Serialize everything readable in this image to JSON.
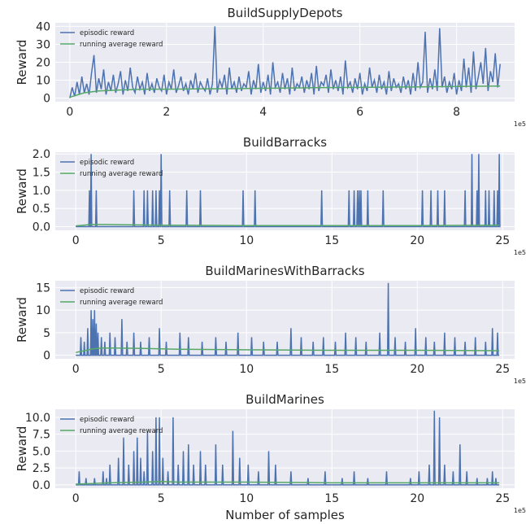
{
  "chart_data": [
    {
      "type": "line",
      "title": "BuildSupplyDepots",
      "ylabel": "Reward",
      "xlabel": "",
      "x_offset_text": "1e5",
      "xlim": [
        -0.3,
        9.2
      ],
      "ylim": [
        -2,
        42
      ],
      "xticks": [
        0,
        2,
        4,
        6,
        8
      ],
      "yticks": [
        0,
        10,
        20,
        30,
        40
      ],
      "legend": "top-left",
      "grid": true,
      "series": [
        {
          "name": "episodic reward",
          "color": "#4c72b0",
          "x": [
            0,
            0.05,
            0.1,
            0.15,
            0.2,
            0.25,
            0.3,
            0.35,
            0.4,
            0.45,
            0.5,
            0.55,
            0.6,
            0.65,
            0.7,
            0.75,
            0.8,
            0.85,
            0.9,
            0.95,
            1.0,
            1.05,
            1.1,
            1.15,
            1.2,
            1.25,
            1.3,
            1.35,
            1.4,
            1.45,
            1.5,
            1.55,
            1.6,
            1.65,
            1.7,
            1.75,
            1.8,
            1.85,
            1.9,
            1.95,
            2.0,
            2.05,
            2.1,
            2.15,
            2.2,
            2.25,
            2.3,
            2.35,
            2.4,
            2.45,
            2.5,
            2.55,
            2.6,
            2.65,
            2.7,
            2.75,
            2.8,
            2.85,
            2.9,
            2.95,
            3.0,
            3.05,
            3.1,
            3.15,
            3.2,
            3.25,
            3.3,
            3.35,
            3.4,
            3.45,
            3.5,
            3.55,
            3.6,
            3.65,
            3.7,
            3.75,
            3.8,
            3.85,
            3.9,
            3.95,
            4.0,
            4.05,
            4.1,
            4.15,
            4.2,
            4.25,
            4.3,
            4.35,
            4.4,
            4.45,
            4.5,
            4.55,
            4.6,
            4.65,
            4.7,
            4.75,
            4.8,
            4.85,
            4.9,
            4.95,
            5.0,
            5.05,
            5.1,
            5.15,
            5.2,
            5.25,
            5.3,
            5.35,
            5.4,
            5.45,
            5.5,
            5.55,
            5.6,
            5.65,
            5.7,
            5.75,
            5.8,
            5.85,
            5.9,
            5.95,
            6.0,
            6.05,
            6.1,
            6.15,
            6.2,
            6.25,
            6.3,
            6.35,
            6.4,
            6.45,
            6.5,
            6.55,
            6.6,
            6.65,
            6.7,
            6.75,
            6.8,
            6.85,
            6.9,
            6.95,
            7.0,
            7.05,
            7.1,
            7.15,
            7.2,
            7.25,
            7.3,
            7.35,
            7.4,
            7.45,
            7.5,
            7.55,
            7.6,
            7.65,
            7.7,
            7.75,
            7.8,
            7.85,
            7.9,
            7.95,
            8.0,
            8.05,
            8.1,
            8.15,
            8.2,
            8.25,
            8.3,
            8.35,
            8.4,
            8.45,
            8.5,
            8.55,
            8.6,
            8.65,
            8.7,
            8.75,
            8.8,
            8.85,
            8.9
          ],
          "y": [
            0,
            6,
            1,
            9,
            2,
            12,
            3,
            8,
            2,
            14,
            24,
            3,
            11,
            5,
            16,
            2,
            9,
            4,
            13,
            3,
            8,
            15,
            2,
            10,
            4,
            17,
            6,
            3,
            12,
            5,
            9,
            2,
            14,
            4,
            8,
            3,
            11,
            6,
            4,
            13,
            2,
            9,
            5,
            16,
            3,
            7,
            12,
            4,
            8,
            2,
            10,
            5,
            14,
            3,
            9,
            6,
            4,
            11,
            2,
            8,
            40,
            3,
            10,
            6,
            13,
            2,
            17,
            5,
            9,
            3,
            12,
            4,
            8,
            6,
            15,
            2,
            10,
            5,
            19,
            3,
            9,
            4,
            13,
            2,
            20,
            6,
            9,
            3,
            14,
            5,
            11,
            2,
            17,
            4,
            8,
            6,
            12,
            3,
            10,
            5,
            14,
            2,
            18,
            4,
            9,
            7,
            13,
            3,
            16,
            5,
            10,
            4,
            12,
            2,
            21,
            6,
            9,
            3,
            11,
            5,
            14,
            2,
            8,
            4,
            17,
            6,
            10,
            3,
            13,
            5,
            9,
            2,
            15,
            4,
            11,
            6,
            8,
            3,
            12,
            5,
            10,
            2,
            14,
            4,
            20,
            6,
            9,
            37,
            3,
            11,
            5,
            16,
            4,
            39,
            6,
            12,
            3,
            9,
            5,
            14,
            2,
            10,
            4,
            22,
            6,
            17,
            3,
            26,
            5,
            12,
            20,
            8,
            28,
            4,
            15,
            9,
            25,
            6,
            19
          ]
        },
        {
          "name": "running average reward",
          "color": "#55a868",
          "x": [
            0,
            0.3,
            0.6,
            1.0,
            1.5,
            2.0,
            3.0,
            4.0,
            5.0,
            6.0,
            7.0,
            8.0,
            8.9
          ],
          "y": [
            0.5,
            3,
            4,
            4.5,
            5,
            5,
            5.2,
            5.5,
            5.8,
            6,
            6.2,
            6.5,
            6.7
          ]
        }
      ]
    },
    {
      "type": "line",
      "title": "BuildBarracks",
      "ylabel": "Reward",
      "xlabel": "",
      "x_offset_text": "1e5",
      "xlim": [
        -1.2,
        25.7
      ],
      "ylim": [
        -0.1,
        2.05
      ],
      "xticks": [
        0,
        5,
        10,
        15,
        20,
        25
      ],
      "yticks": [
        0.0,
        0.5,
        1.0,
        1.5,
        2.0
      ],
      "ytick_labels": [
        "0.0",
        "0.5",
        "1.0",
        "1.5",
        "2.0"
      ],
      "legend": "top-left",
      "grid": true,
      "series": [
        {
          "name": "episodic reward",
          "color": "#4c72b0",
          "spikes": [
            [
              0.8,
              1
            ],
            [
              0.9,
              2
            ],
            [
              1.2,
              1
            ],
            [
              3.4,
              1
            ],
            [
              4.0,
              1
            ],
            [
              4.2,
              1
            ],
            [
              4.5,
              1
            ],
            [
              4.7,
              1
            ],
            [
              4.9,
              1
            ],
            [
              5.0,
              2
            ],
            [
              5.5,
              1
            ],
            [
              6.5,
              1
            ],
            [
              7.3,
              1
            ],
            [
              9.8,
              1
            ],
            [
              10.5,
              1
            ],
            [
              14.4,
              1
            ],
            [
              16.0,
              1
            ],
            [
              16.3,
              1
            ],
            [
              16.5,
              1
            ],
            [
              16.6,
              1
            ],
            [
              16.7,
              1
            ],
            [
              17.1,
              1
            ],
            [
              18.0,
              1
            ],
            [
              20.3,
              1
            ],
            [
              20.8,
              1
            ],
            [
              21.2,
              1
            ],
            [
              21.6,
              1
            ],
            [
              22.8,
              1
            ],
            [
              23.2,
              2
            ],
            [
              23.5,
              1
            ],
            [
              23.6,
              2
            ],
            [
              24.0,
              1
            ],
            [
              24.2,
              1
            ],
            [
              24.5,
              1
            ],
            [
              24.7,
              1
            ],
            [
              24.8,
              2
            ]
          ]
        },
        {
          "name": "running average reward",
          "color": "#55a868",
          "x": [
            0,
            0.9,
            1.5,
            3,
            5,
            10,
            15,
            20,
            24.8
          ],
          "y": [
            0.02,
            0.06,
            0.06,
            0.05,
            0.04,
            0.03,
            0.03,
            0.03,
            0.04
          ]
        }
      ]
    },
    {
      "type": "line",
      "title": "BuildMarinesWithBarracks",
      "ylabel": "Reward",
      "xlabel": "",
      "x_offset_text": "1e5",
      "xlim": [
        -1.2,
        25.7
      ],
      "ylim": [
        -0.8,
        16.5
      ],
      "xticks": [
        0,
        5,
        10,
        15,
        20,
        25
      ],
      "yticks": [
        0,
        5,
        10,
        15
      ],
      "legend": "top-left",
      "grid": true,
      "series": [
        {
          "name": "episodic reward",
          "color": "#4c72b0",
          "spikes": [
            [
              0.3,
              4
            ],
            [
              0.5,
              3
            ],
            [
              0.7,
              6
            ],
            [
              0.9,
              10
            ],
            [
              1.0,
              8
            ],
            [
              1.1,
              10
            ],
            [
              1.2,
              7
            ],
            [
              1.3,
              5
            ],
            [
              1.5,
              4
            ],
            [
              1.7,
              3
            ],
            [
              2.0,
              5
            ],
            [
              2.3,
              4
            ],
            [
              2.7,
              8
            ],
            [
              3.0,
              3
            ],
            [
              3.4,
              5
            ],
            [
              3.8,
              3
            ],
            [
              4.3,
              4
            ],
            [
              4.9,
              6
            ],
            [
              5.3,
              3
            ],
            [
              6.1,
              5
            ],
            [
              6.6,
              4
            ],
            [
              7.4,
              3
            ],
            [
              8.2,
              4
            ],
            [
              8.8,
              3
            ],
            [
              9.5,
              5
            ],
            [
              10.3,
              4
            ],
            [
              11.0,
              3
            ],
            [
              11.8,
              3
            ],
            [
              12.6,
              6
            ],
            [
              13.2,
              4
            ],
            [
              13.9,
              3
            ],
            [
              14.5,
              4
            ],
            [
              15.2,
              3
            ],
            [
              15.8,
              5
            ],
            [
              16.4,
              4
            ],
            [
              17.0,
              3
            ],
            [
              17.8,
              5
            ],
            [
              18.3,
              16
            ],
            [
              18.7,
              4
            ],
            [
              19.3,
              3
            ],
            [
              19.9,
              6
            ],
            [
              20.5,
              4
            ],
            [
              21.0,
              3
            ],
            [
              21.6,
              5
            ],
            [
              22.2,
              4
            ],
            [
              22.8,
              3
            ],
            [
              23.4,
              4
            ],
            [
              24.0,
              3
            ],
            [
              24.4,
              6
            ],
            [
              24.7,
              5
            ]
          ]
        },
        {
          "name": "running average reward",
          "color": "#55a868",
          "x": [
            0,
            0.5,
            1.0,
            1.5,
            2.5,
            4,
            6,
            10,
            15,
            20,
            24.8
          ],
          "y": [
            0.6,
            1.0,
            1.4,
            1.6,
            1.6,
            1.5,
            1.3,
            1.2,
            1.1,
            1.1,
            1.0
          ]
        }
      ]
    },
    {
      "type": "line",
      "title": "BuildMarines",
      "ylabel": "Reward",
      "xlabel": "Number of samples",
      "x_offset_text": "1e5",
      "xlim": [
        -1.2,
        25.7
      ],
      "ylim": [
        -0.5,
        11.2
      ],
      "xticks": [
        0,
        5,
        10,
        15,
        20,
        25
      ],
      "yticks": [
        0.0,
        2.5,
        5.0,
        7.5,
        10.0
      ],
      "ytick_labels": [
        "0.0",
        "2.5",
        "5.0",
        "7.5",
        "10.0"
      ],
      "legend": "top-left",
      "grid": true,
      "series": [
        {
          "name": "episodic reward",
          "color": "#4c72b0",
          "spikes": [
            [
              0.2,
              2
            ],
            [
              0.6,
              1
            ],
            [
              1.1,
              1
            ],
            [
              1.6,
              2
            ],
            [
              1.8,
              1
            ],
            [
              2.0,
              3
            ],
            [
              2.5,
              4
            ],
            [
              2.8,
              7
            ],
            [
              3.1,
              3
            ],
            [
              3.4,
              5
            ],
            [
              3.6,
              7
            ],
            [
              3.8,
              4
            ],
            [
              4.0,
              2
            ],
            [
              4.2,
              8
            ],
            [
              4.5,
              5
            ],
            [
              4.7,
              10
            ],
            [
              4.9,
              10
            ],
            [
              5.1,
              4
            ],
            [
              5.4,
              2
            ],
            [
              5.7,
              10
            ],
            [
              6.0,
              3
            ],
            [
              6.3,
              5
            ],
            [
              6.6,
              6
            ],
            [
              6.9,
              3
            ],
            [
              7.3,
              5
            ],
            [
              7.6,
              3
            ],
            [
              8.2,
              6
            ],
            [
              8.6,
              3
            ],
            [
              9.2,
              8
            ],
            [
              9.6,
              4
            ],
            [
              10.1,
              3
            ],
            [
              10.7,
              2
            ],
            [
              11.3,
              5
            ],
            [
              11.7,
              3
            ],
            [
              12.6,
              2
            ],
            [
              13.6,
              1
            ],
            [
              14.6,
              2
            ],
            [
              15.6,
              1
            ],
            [
              16.3,
              2
            ],
            [
              17.1,
              1
            ],
            [
              18.2,
              2
            ],
            [
              19.6,
              1
            ],
            [
              20.1,
              2
            ],
            [
              20.7,
              3
            ],
            [
              21.0,
              11
            ],
            [
              21.3,
              10
            ],
            [
              21.6,
              3
            ],
            [
              22.1,
              2
            ],
            [
              22.5,
              6
            ],
            [
              22.9,
              2
            ],
            [
              23.5,
              1
            ],
            [
              24.1,
              1
            ],
            [
              24.4,
              2
            ],
            [
              24.6,
              1
            ]
          ]
        },
        {
          "name": "running average reward",
          "color": "#55a868",
          "x": [
            0,
            1,
            2,
            4,
            5,
            6,
            10,
            15,
            20,
            24.8
          ],
          "y": [
            0.1,
            0.2,
            0.3,
            0.4,
            0.5,
            0.4,
            0.4,
            0.3,
            0.3,
            0.3
          ]
        }
      ]
    }
  ]
}
